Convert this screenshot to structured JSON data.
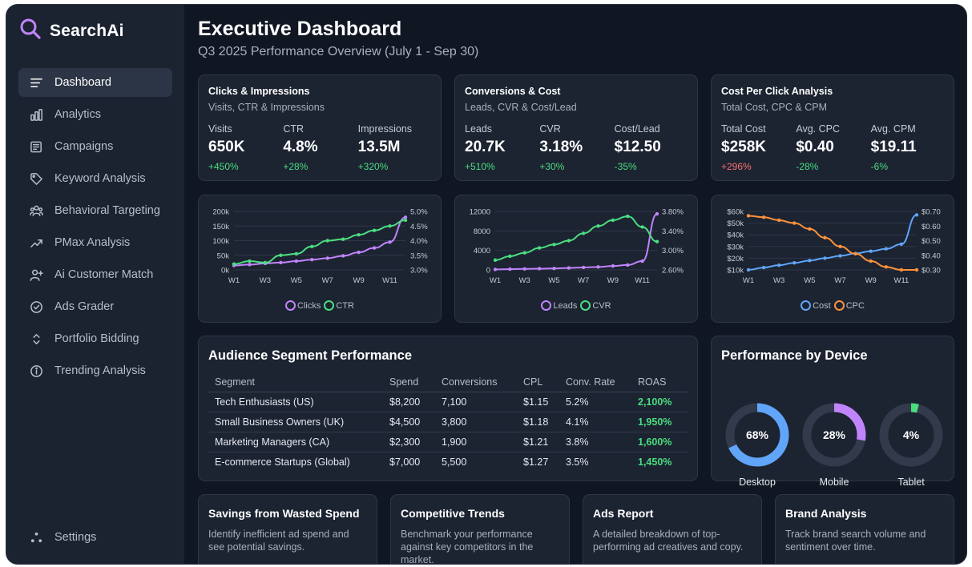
{
  "brand": {
    "name": "SearchAi",
    "icon": "search-icon"
  },
  "nav": [
    {
      "label": "Dashboard",
      "icon": "menu-lines-icon",
      "active": true
    },
    {
      "label": "Analytics",
      "icon": "bar-chart-icon"
    },
    {
      "label": "Campaigns",
      "icon": "newspaper-icon"
    },
    {
      "label": "Keyword Analysis",
      "icon": "tag-icon"
    },
    {
      "label": "Behavioral Targeting",
      "icon": "users-icon"
    },
    {
      "label": "PMax Analysis",
      "icon": "trend-up-icon"
    },
    {
      "label": "Ai Customer Match",
      "icon": "user-plus-icon"
    },
    {
      "label": "Ads Grader",
      "icon": "check-circle-icon"
    },
    {
      "label": "Portfolio Bidding",
      "icon": "chevrons-updown-icon"
    },
    {
      "label": "Trending Analysis",
      "icon": "info-icon"
    }
  ],
  "settings": {
    "label": "Settings",
    "icon": "settings-dots-icon"
  },
  "header": {
    "title": "Executive Dashboard",
    "subtitle": "Q3 2025 Performance Overview (July 1 - Sep 30)"
  },
  "kpi_cards": [
    {
      "title": "Clicks & Impressions",
      "subtitle": "Visits, CTR & Impressions",
      "metrics": [
        {
          "label": "Visits",
          "value": "650K",
          "change": "+450%",
          "trend": "up"
        },
        {
          "label": "CTR",
          "value": "4.8%",
          "change": "+28%",
          "trend": "up"
        },
        {
          "label": "Impressions",
          "value": "13.5M",
          "change": "+320%",
          "trend": "up"
        }
      ]
    },
    {
      "title": "Conversions & Cost",
      "subtitle": "Leads, CVR & Cost/Lead",
      "metrics": [
        {
          "label": "Leads",
          "value": "20.7K",
          "change": "+510%",
          "trend": "up"
        },
        {
          "label": "CVR",
          "value": "3.18%",
          "change": "+30%",
          "trend": "up"
        },
        {
          "label": "Cost/Lead",
          "value": "$12.50",
          "change": "-35%",
          "trend": "up"
        }
      ]
    },
    {
      "title": "Cost Per Click Analysis",
      "subtitle": "Total Cost, CPC & CPM",
      "metrics": [
        {
          "label": "Total Cost",
          "value": "$258K",
          "change": "+296%",
          "trend": "down"
        },
        {
          "label": "Avg. CPC",
          "value": "$0.40",
          "change": "-28%",
          "trend": "up"
        },
        {
          "label": "Avg. CPM",
          "value": "$19.11",
          "change": "-6%",
          "trend": "up"
        }
      ]
    }
  ],
  "chart_data": [
    {
      "type": "line",
      "x": [
        "W1",
        "W2",
        "W3",
        "W4",
        "W5",
        "W6",
        "W7",
        "W8",
        "W9",
        "W10",
        "W11",
        "W12"
      ],
      "xticks": [
        "W1",
        "W3",
        "W5",
        "W7",
        "W9",
        "W11"
      ],
      "left_axis": {
        "ticks": [
          "0k",
          "50k",
          "100k",
          "150k",
          "200k"
        ],
        "ylim": [
          0,
          200000
        ]
      },
      "right_axis": {
        "ticks": [
          "3.0%",
          "3.5%",
          "4.0%",
          "4.5%",
          "5.0%"
        ],
        "ylim": [
          3.0,
          5.0
        ]
      },
      "series": [
        {
          "name": "Clicks",
          "axis": "left",
          "color": "#c084fc",
          "values": [
            15000,
            18000,
            22000,
            25000,
            30000,
            35000,
            40000,
            48000,
            60000,
            75000,
            95000,
            180000
          ]
        },
        {
          "name": "CTR",
          "axis": "right",
          "color": "#4ade80",
          "values": [
            3.2,
            3.3,
            3.25,
            3.5,
            3.55,
            3.8,
            4.0,
            4.05,
            4.2,
            4.35,
            4.5,
            4.7
          ]
        }
      ]
    },
    {
      "type": "line",
      "x": [
        "W1",
        "W2",
        "W3",
        "W4",
        "W5",
        "W6",
        "W7",
        "W8",
        "W9",
        "W10",
        "W11",
        "W12"
      ],
      "xticks": [
        "W1",
        "W3",
        "W5",
        "W7",
        "W9",
        "W11"
      ],
      "left_axis": {
        "ticks": [
          "0",
          "4000",
          "8000",
          "12000"
        ],
        "ylim": [
          0,
          12000
        ]
      },
      "right_axis": {
        "ticks": [
          "2.60%",
          "3.00%",
          "3.40%",
          "3.80%"
        ],
        "ylim": [
          2.6,
          3.8
        ]
      },
      "series": [
        {
          "name": "Leads",
          "axis": "left",
          "color": "#c084fc",
          "values": [
            100,
            150,
            200,
            250,
            300,
            400,
            500,
            600,
            800,
            1000,
            1800,
            11500
          ]
        },
        {
          "name": "CVR",
          "axis": "right",
          "color": "#4ade80",
          "values": [
            2.8,
            2.88,
            2.95,
            3.05,
            3.12,
            3.2,
            3.35,
            3.5,
            3.62,
            3.7,
            3.48,
            3.18
          ]
        }
      ]
    },
    {
      "type": "line",
      "x": [
        "W1",
        "W2",
        "W3",
        "W4",
        "W5",
        "W6",
        "W7",
        "W8",
        "W9",
        "W10",
        "W11",
        "W12"
      ],
      "xticks": [
        "W1",
        "W3",
        "W5",
        "W7",
        "W9",
        "W11"
      ],
      "left_axis": {
        "ticks": [
          "$10k",
          "$20k",
          "$30k",
          "$40k",
          "$50k",
          "$60k"
        ],
        "ylim": [
          10000,
          60000
        ]
      },
      "right_axis": {
        "ticks": [
          "$0.30",
          "$0.40",
          "$0.50",
          "$0.60",
          "$0.70"
        ],
        "ylim": [
          0.3,
          0.7
        ]
      },
      "series": [
        {
          "name": "Cost",
          "axis": "left",
          "color": "#60a5fa",
          "values": [
            10000,
            12000,
            14000,
            16000,
            18000,
            20000,
            22000,
            24000,
            26000,
            28000,
            32000,
            57000
          ]
        },
        {
          "name": "CPC",
          "axis": "right",
          "color": "#fb923c",
          "values": [
            0.67,
            0.66,
            0.64,
            0.62,
            0.58,
            0.52,
            0.46,
            0.41,
            0.36,
            0.32,
            0.3,
            0.3
          ]
        }
      ]
    }
  ],
  "segments": {
    "title": "Audience Segment Performance",
    "columns": [
      "Segment",
      "Spend",
      "Conversions",
      "CPL",
      "Conv. Rate",
      "ROAS"
    ],
    "rows": [
      [
        "Tech Enthusiasts (US)",
        "$8,200",
        "7,100",
        "$1.15",
        "5.2%",
        "2,100%"
      ],
      [
        "Small Business Owners (UK)",
        "$4,500",
        "3,800",
        "$1.18",
        "4.1%",
        "1,950%"
      ],
      [
        "Marketing Managers (CA)",
        "$2,300",
        "1,900",
        "$1.21",
        "3.8%",
        "1,600%"
      ],
      [
        "E-commerce Startups (Global)",
        "$7,000",
        "5,500",
        "$1.27",
        "3.5%",
        "1,450%"
      ]
    ]
  },
  "device": {
    "title": "Performance by Device",
    "items": [
      {
        "label": "Desktop",
        "percent": 68,
        "display": "68%",
        "color": "#60a5fa"
      },
      {
        "label": "Mobile",
        "percent": 28,
        "display": "28%",
        "color": "#c084fc"
      },
      {
        "label": "Tablet",
        "percent": 4,
        "display": "4%",
        "color": "#4ade80"
      }
    ]
  },
  "features": [
    {
      "title": "Savings from Wasted Spend",
      "desc": "Identify inefficient ad spend and see potential savings."
    },
    {
      "title": "Competitive Trends",
      "desc": "Benchmark your performance against key competitors in the market."
    },
    {
      "title": "Ads Report",
      "desc": "A detailed breakdown of top-performing ad creatives and copy."
    },
    {
      "title": "Brand Analysis",
      "desc": "Track brand search volume and sentiment over time."
    }
  ]
}
